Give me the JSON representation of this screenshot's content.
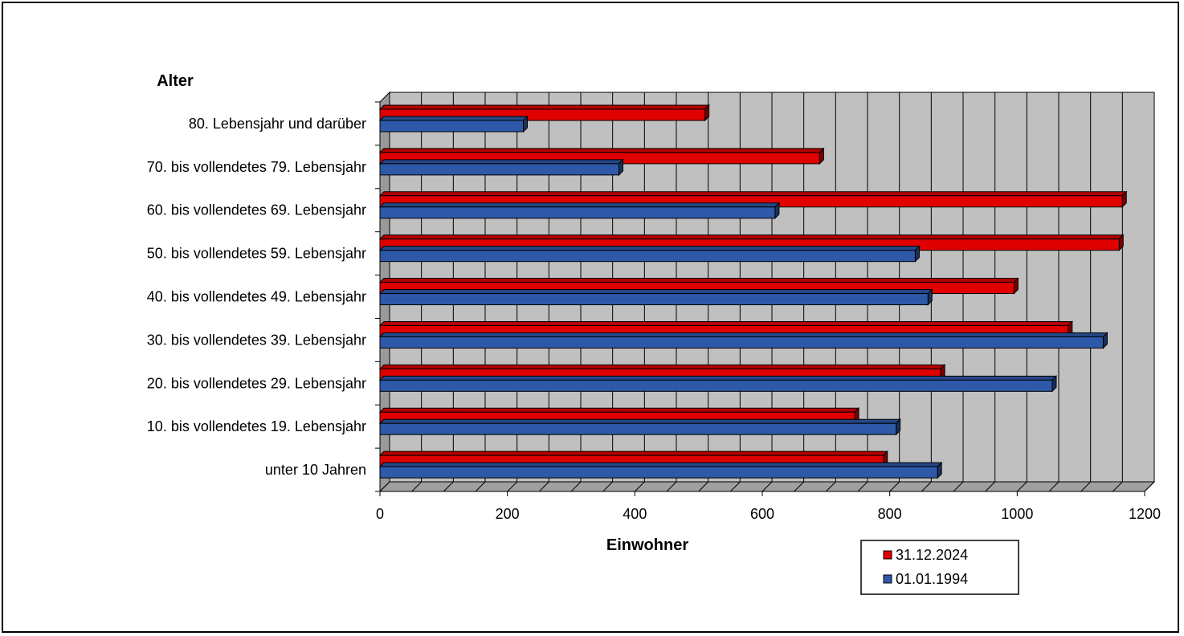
{
  "chart_data": {
    "type": "bar",
    "orientation": "horizontal",
    "ylabel": "Alter",
    "xlabel": "Einwohner",
    "xlim": [
      0,
      1200
    ],
    "xticks": [
      0,
      200,
      400,
      600,
      800,
      1000,
      1200
    ],
    "categories": [
      "80. Lebensjahr und darüber",
      "70. bis vollendetes 79. Lebensjahr",
      "60. bis vollendetes 69. Lebensjahr",
      "50. bis vollendetes 59. Lebensjahr",
      "40. bis vollendetes 49. Lebensjahr",
      "30. bis vollendetes 39. Lebensjahr",
      "20. bis vollendetes 29. Lebensjahr",
      "10. bis vollendetes 19. Lebensjahr",
      "unter 10 Jahren"
    ],
    "series": [
      {
        "name": "31.12.2024",
        "color": "#e00000",
        "values": [
          510,
          690,
          1165,
          1160,
          995,
          1080,
          880,
          745,
          790
        ]
      },
      {
        "name": "01.01.1994",
        "color": "#2e59a8",
        "values": [
          225,
          375,
          620,
          840,
          860,
          1135,
          1055,
          810,
          875
        ]
      }
    ],
    "grid": true,
    "legend_position": "bottom-right",
    "style": "3d"
  }
}
